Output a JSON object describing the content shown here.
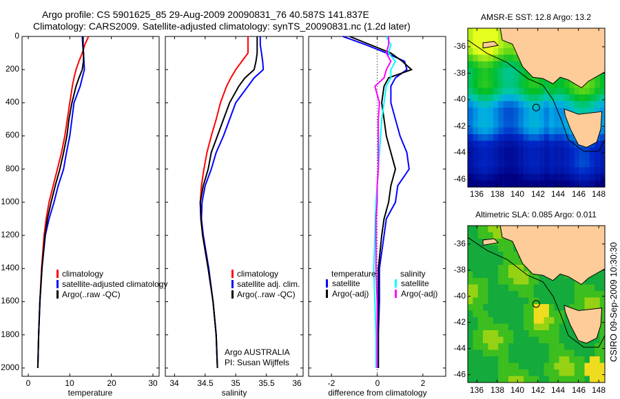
{
  "title_line1": "Argo profile: CS 5901625_85 29-Aug-2009 20090831_76 40.587S 141.837E",
  "title_line2": "Climatology: CARS2009. Satellite-adjusted climatology: synTS_20090831.nc (1.2d later)",
  "side_label": "CSIRO 09-Sep-2009 10:30:30",
  "colors": {
    "climatology": "#ff0000",
    "satellite": "#0000ff",
    "argo": "#000000",
    "cyan": "#00ffff",
    "magenta": "#ff00ff",
    "land": "#fdcc99"
  },
  "chart_data": [
    {
      "type": "line",
      "id": "temperature",
      "xlabel": "temperature",
      "xlim": [
        -1.5,
        31.5
      ],
      "ylim": [
        2050,
        0
      ],
      "xticks": [
        "0",
        "10",
        "20",
        "30"
      ],
      "xtick_values": [
        0,
        10,
        20,
        30
      ],
      "yticks": [
        "0",
        "200",
        "400",
        "600",
        "800",
        "1000",
        "1200",
        "1400",
        "1600",
        "1800",
        "2000"
      ],
      "depth": [
        0,
        50,
        100,
        150,
        200,
        250,
        300,
        400,
        500,
        600,
        700,
        800,
        900,
        1000,
        1100,
        1200,
        1400,
        1600,
        1800,
        2000
      ],
      "series": [
        {
          "name": "climatology",
          "color": "#ff0000",
          "values": [
            14.5,
            13.6,
            13.0,
            12.2,
            11.5,
            11.0,
            10.6,
            10.0,
            9.4,
            8.8,
            8.0,
            7.0,
            6.0,
            5.0,
            4.3,
            3.8,
            3.2,
            2.8,
            2.5,
            2.3
          ]
        },
        {
          "name": "satellite-adjusted climatology",
          "color": "#0000ff",
          "values": [
            13.0,
            13.1,
            13.3,
            13.4,
            13.5,
            13.0,
            12.5,
            11.0,
            10.5,
            10.0,
            9.2,
            8.5,
            7.2,
            6.2,
            5.0,
            4.1,
            3.3,
            2.8,
            2.5,
            2.3
          ]
        },
        {
          "name": "Argo(..raw -QC)",
          "color": "#000000",
          "values": [
            13.2,
            13.2,
            13.3,
            13.3,
            13.0,
            12.2,
            11.5,
            10.5,
            9.8,
            9.3,
            8.5,
            7.6,
            6.5,
            5.5,
            4.6,
            4.0,
            3.3,
            2.8,
            2.5,
            2.3
          ]
        }
      ],
      "legend": [
        "climatology",
        "satellite-adjusted climatology",
        "Argo(..raw -QC)"
      ]
    },
    {
      "type": "line",
      "id": "salinity",
      "xlabel": "salinity",
      "xlim": [
        33.85,
        36.1
      ],
      "ylim": [
        2050,
        0
      ],
      "xticks": [
        "34",
        "34.5",
        "35",
        "35.5",
        "36"
      ],
      "xtick_values": [
        34,
        34.5,
        35,
        35.5,
        36
      ],
      "depth": [
        0,
        50,
        100,
        150,
        200,
        250,
        300,
        400,
        500,
        600,
        700,
        800,
        900,
        1000,
        1100,
        1200,
        1400,
        1600,
        1800,
        2000
      ],
      "series": [
        {
          "name": "climatology",
          "color": "#ff0000",
          "values": [
            35.2,
            35.2,
            35.2,
            35.1,
            35.0,
            34.92,
            34.85,
            34.75,
            34.68,
            34.6,
            34.53,
            34.48,
            34.44,
            34.42,
            34.43,
            34.46,
            34.55,
            34.63,
            34.68,
            34.7
          ]
        },
        {
          "name": "satellite adj. clim.",
          "color": "#0000ff",
          "values": [
            35.4,
            35.4,
            35.42,
            35.44,
            35.45,
            35.3,
            35.2,
            35.0,
            34.9,
            34.8,
            34.68,
            34.6,
            34.5,
            34.45,
            34.44,
            34.47,
            34.56,
            34.63,
            34.68,
            34.7
          ]
        },
        {
          "name": "Argo(..raw -QC)",
          "color": "#000000",
          "values": [
            35.35,
            35.35,
            35.35,
            35.33,
            35.3,
            35.15,
            35.05,
            34.9,
            34.8,
            34.7,
            34.6,
            34.55,
            34.47,
            34.42,
            34.43,
            34.46,
            34.55,
            34.63,
            34.68,
            34.7
          ]
        }
      ],
      "legend": [
        "climatology",
        "satellite adj. clim.",
        "Argo(..raw -QC)"
      ],
      "annotation": [
        "Argo AUSTRALIA",
        "PI: Susan Wijffels"
      ]
    },
    {
      "type": "line",
      "id": "difference",
      "xlabel": "difference from climatology",
      "xlim": [
        -3,
        3
      ],
      "ylim": [
        2050,
        0
      ],
      "xticks": [
        "-2",
        "0",
        "2"
      ],
      "xtick_values": [
        -2,
        0,
        2
      ],
      "depth": [
        0,
        50,
        100,
        150,
        200,
        250,
        300,
        400,
        500,
        600,
        700,
        800,
        900,
        1000,
        1100,
        1200,
        1400,
        1600,
        1800,
        2000
      ],
      "series": [
        {
          "name": "temperature satellite",
          "color": "#0000ff",
          "values": [
            -1.5,
            -0.5,
            0.4,
            1.2,
            1.3,
            0.8,
            0.6,
            0.6,
            0.8,
            1.0,
            1.3,
            1.4,
            0.9,
            0.8,
            0.4,
            0.3,
            0.1,
            0.1,
            0.05,
            0.05
          ]
        },
        {
          "name": "temperature Argo(-adj)",
          "color": "#000000",
          "values": [
            -1.2,
            -0.3,
            0.6,
            1.1,
            1.5,
            0.5,
            0.3,
            0.2,
            0.3,
            0.4,
            0.6,
            0.8,
            0.6,
            0.5,
            0.3,
            0.2,
            0.05,
            0.05,
            0.05,
            0.05
          ]
        },
        {
          "name": "salinity satellite",
          "color": "#00ffff",
          "values": [
            0.4,
            0.6,
            0.5,
            0.8,
            0.6,
            0.6,
            0.4,
            0.3,
            0.2,
            0.15,
            0.1,
            0.05,
            0.0,
            -0.05,
            -0.08,
            -0.1,
            -0.15,
            -0.1,
            -0.05,
            -0.05
          ]
        },
        {
          "name": "salinity Argo(-adj)",
          "color": "#ff00ff",
          "values": [
            0.5,
            0.5,
            0.4,
            0.6,
            0.4,
            0.3,
            -0.1,
            0.1,
            0.05,
            0.05,
            0.05,
            0.05,
            0.0,
            0.0,
            -0.05,
            -0.05,
            -0.05,
            0.0,
            0.0,
            0.0
          ]
        }
      ],
      "legend_headers": [
        "temperature",
        "salinity"
      ],
      "legend": [
        "satellite",
        "Argo(-adj)",
        "satellite",
        "Argo(-adj)"
      ]
    }
  ],
  "maps": [
    {
      "title": "AMSR-E SST: 12.8 Argo: 13.2",
      "field": "sst",
      "xticks": [
        "136",
        "138",
        "140",
        "142",
        "144",
        "146",
        "148"
      ],
      "yticks": [
        "-36",
        "-38",
        "-40",
        "-42",
        "-44",
        "-46"
      ],
      "marker_lon": 141.837,
      "marker_lat": -40.587
    },
    {
      "title": "Altimetric SLA: 0.085 Argo: 0.011",
      "field": "sla",
      "xticks": [
        "136",
        "138",
        "140",
        "142",
        "144",
        "146",
        "148"
      ],
      "yticks": [
        "-36",
        "-38",
        "-40",
        "-42",
        "-44",
        "-46"
      ],
      "marker_lon": 141.837,
      "marker_lat": -40.587
    }
  ]
}
